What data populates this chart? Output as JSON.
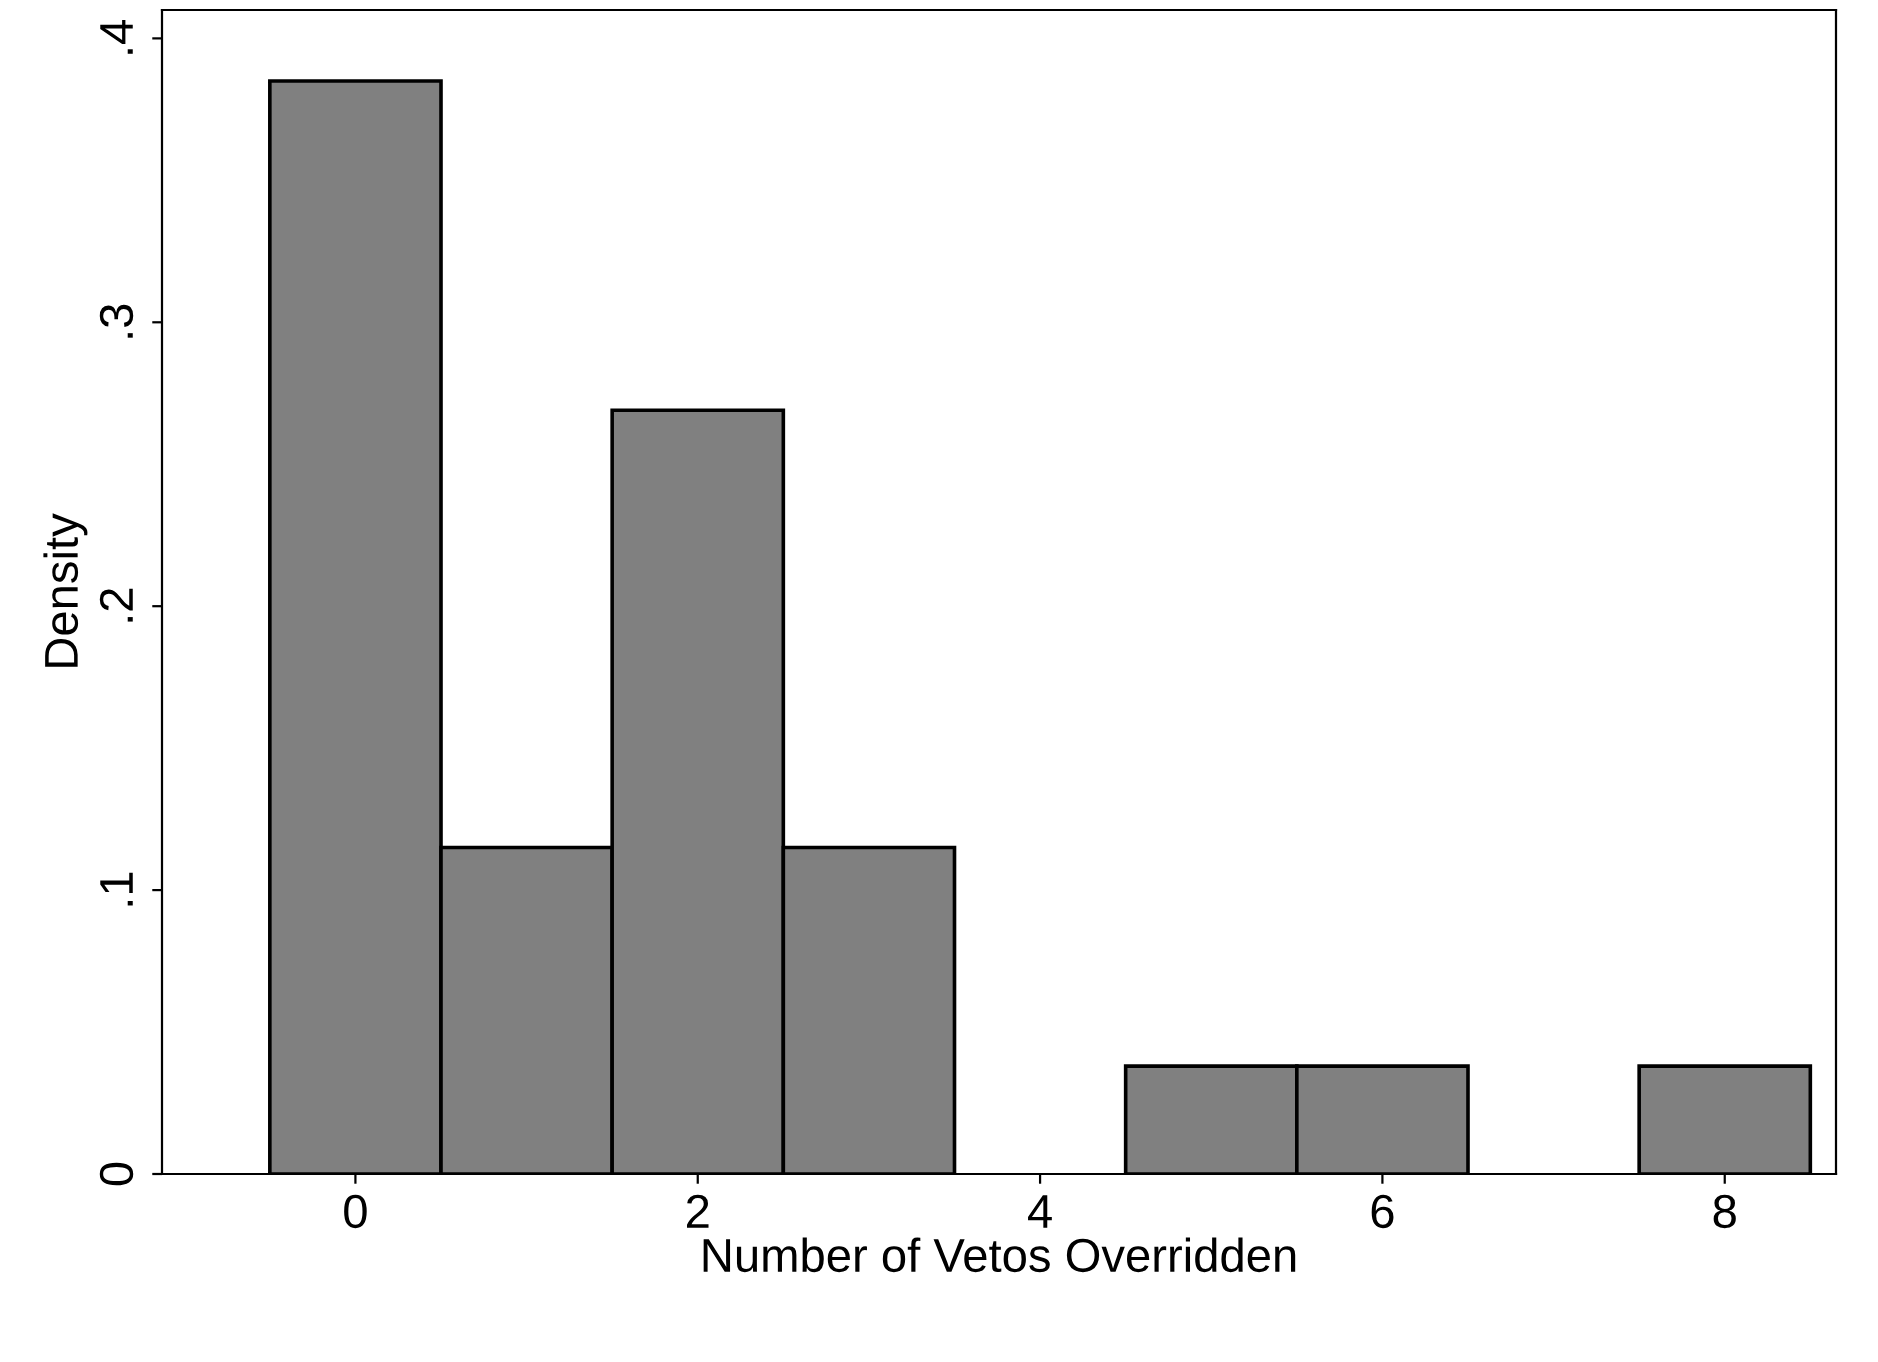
{
  "chart_data": {
    "type": "histogram",
    "xlabel": "Number of Vetos Overridden",
    "ylabel": "Density",
    "bins": [
      -0.5,
      0.5,
      1.5,
      2.5,
      3.5,
      4.5,
      5.5,
      6.5,
      7.5,
      8.5
    ],
    "values": [
      0.385,
      0.115,
      0.269,
      0.115,
      0,
      0.038,
      0.038,
      0,
      0.038
    ],
    "color": "#808080",
    "xlim": [
      -1.13,
      8.65
    ],
    "ylim": [
      0,
      0.41
    ],
    "xticks": [
      0,
      2,
      4,
      6,
      8
    ],
    "yticks": [
      0,
      {
        "value": 0.1,
        "label": ".1"
      },
      {
        "value": 0.2,
        "label": ".2"
      },
      {
        "value": 0.3,
        "label": ".3"
      },
      {
        "value": 0.4,
        "label": ".4"
      }
    ],
    "grid": false
  }
}
